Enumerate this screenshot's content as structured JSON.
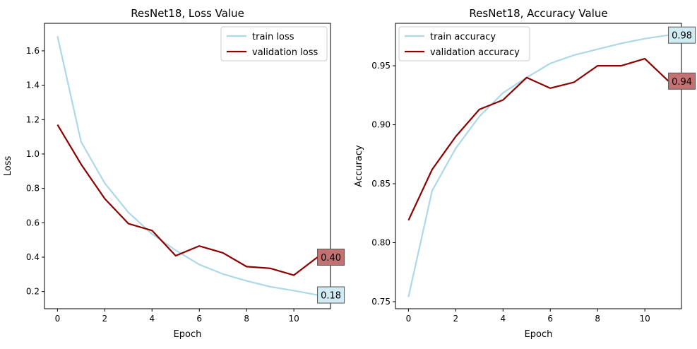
{
  "chart_data": [
    {
      "type": "line",
      "title": "ResNet18, Loss Value",
      "xlabel": "Epoch",
      "ylabel": "Loss",
      "xlim": [
        -0.55,
        11.55
      ],
      "ylim": [
        0.1,
        1.76
      ],
      "xticks": [
        0,
        2,
        4,
        6,
        8,
        10
      ],
      "xtick_labels": [
        "0",
        "2",
        "4",
        "6",
        "8",
        "10"
      ],
      "yticks": [
        0.2,
        0.4,
        0.6,
        0.8,
        1.0,
        1.2,
        1.4,
        1.6
      ],
      "ytick_labels": [
        "0.2",
        "0.4",
        "0.6",
        "0.8",
        "1.0",
        "1.2",
        "1.4",
        "1.6"
      ],
      "x": [
        0,
        1,
        2,
        3,
        4,
        5,
        6,
        7,
        8,
        9,
        10,
        11
      ],
      "legend_position": "top-right",
      "series": [
        {
          "name": "train loss",
          "color": "#add8e6",
          "values": [
            1.685,
            1.07,
            0.83,
            0.66,
            0.535,
            0.44,
            0.357,
            0.302,
            0.262,
            0.228,
            0.205,
            0.18
          ]
        },
        {
          "name": "validation loss",
          "color": "#8b0000",
          "values": [
            1.17,
            0.94,
            0.74,
            0.595,
            0.555,
            0.408,
            0.465,
            0.425,
            0.345,
            0.335,
            0.295,
            0.4
          ]
        }
      ],
      "annotations": [
        {
          "text": "0.40",
          "x": 11,
          "y": 0.4,
          "face": "#c27272",
          "edge": "#555555"
        },
        {
          "text": "0.18",
          "x": 11,
          "y": 0.18,
          "face": "#d1ebf2",
          "edge": "#555555"
        }
      ]
    },
    {
      "type": "line",
      "title": "ResNet18, Accuracy Value",
      "xlabel": "Epoch",
      "ylabel": "Accuracy",
      "xlim": [
        -0.55,
        11.55
      ],
      "ylim": [
        0.744,
        0.986
      ],
      "xticks": [
        0,
        2,
        4,
        6,
        8,
        10
      ],
      "xtick_labels": [
        "0",
        "2",
        "4",
        "6",
        "8",
        "10"
      ],
      "yticks": [
        0.75,
        0.8,
        0.85,
        0.9,
        0.95
      ],
      "ytick_labels": [
        "0.75",
        "0.80",
        "0.85",
        "0.90",
        "0.95"
      ],
      "x": [
        0,
        1,
        2,
        3,
        4,
        5,
        6,
        7,
        8,
        9,
        10,
        11
      ],
      "legend_position": "top-left",
      "series": [
        {
          "name": "train accuracy",
          "color": "#add8e6",
          "values": [
            0.754,
            0.844,
            0.88,
            0.907,
            0.927,
            0.94,
            0.952,
            0.959,
            0.964,
            0.969,
            0.973,
            0.976
          ]
        },
        {
          "name": "validation accuracy",
          "color": "#8b0000",
          "values": [
            0.819,
            0.862,
            0.89,
            0.913,
            0.921,
            0.94,
            0.931,
            0.936,
            0.95,
            0.95,
            0.956,
            0.937
          ]
        }
      ],
      "annotations": [
        {
          "text": "0.98",
          "x": 11,
          "y": 0.976,
          "face": "#d1ebf2",
          "edge": "#555555"
        },
        {
          "text": "0.94",
          "x": 11,
          "y": 0.937,
          "face": "#c27272",
          "edge": "#555555"
        }
      ]
    }
  ]
}
